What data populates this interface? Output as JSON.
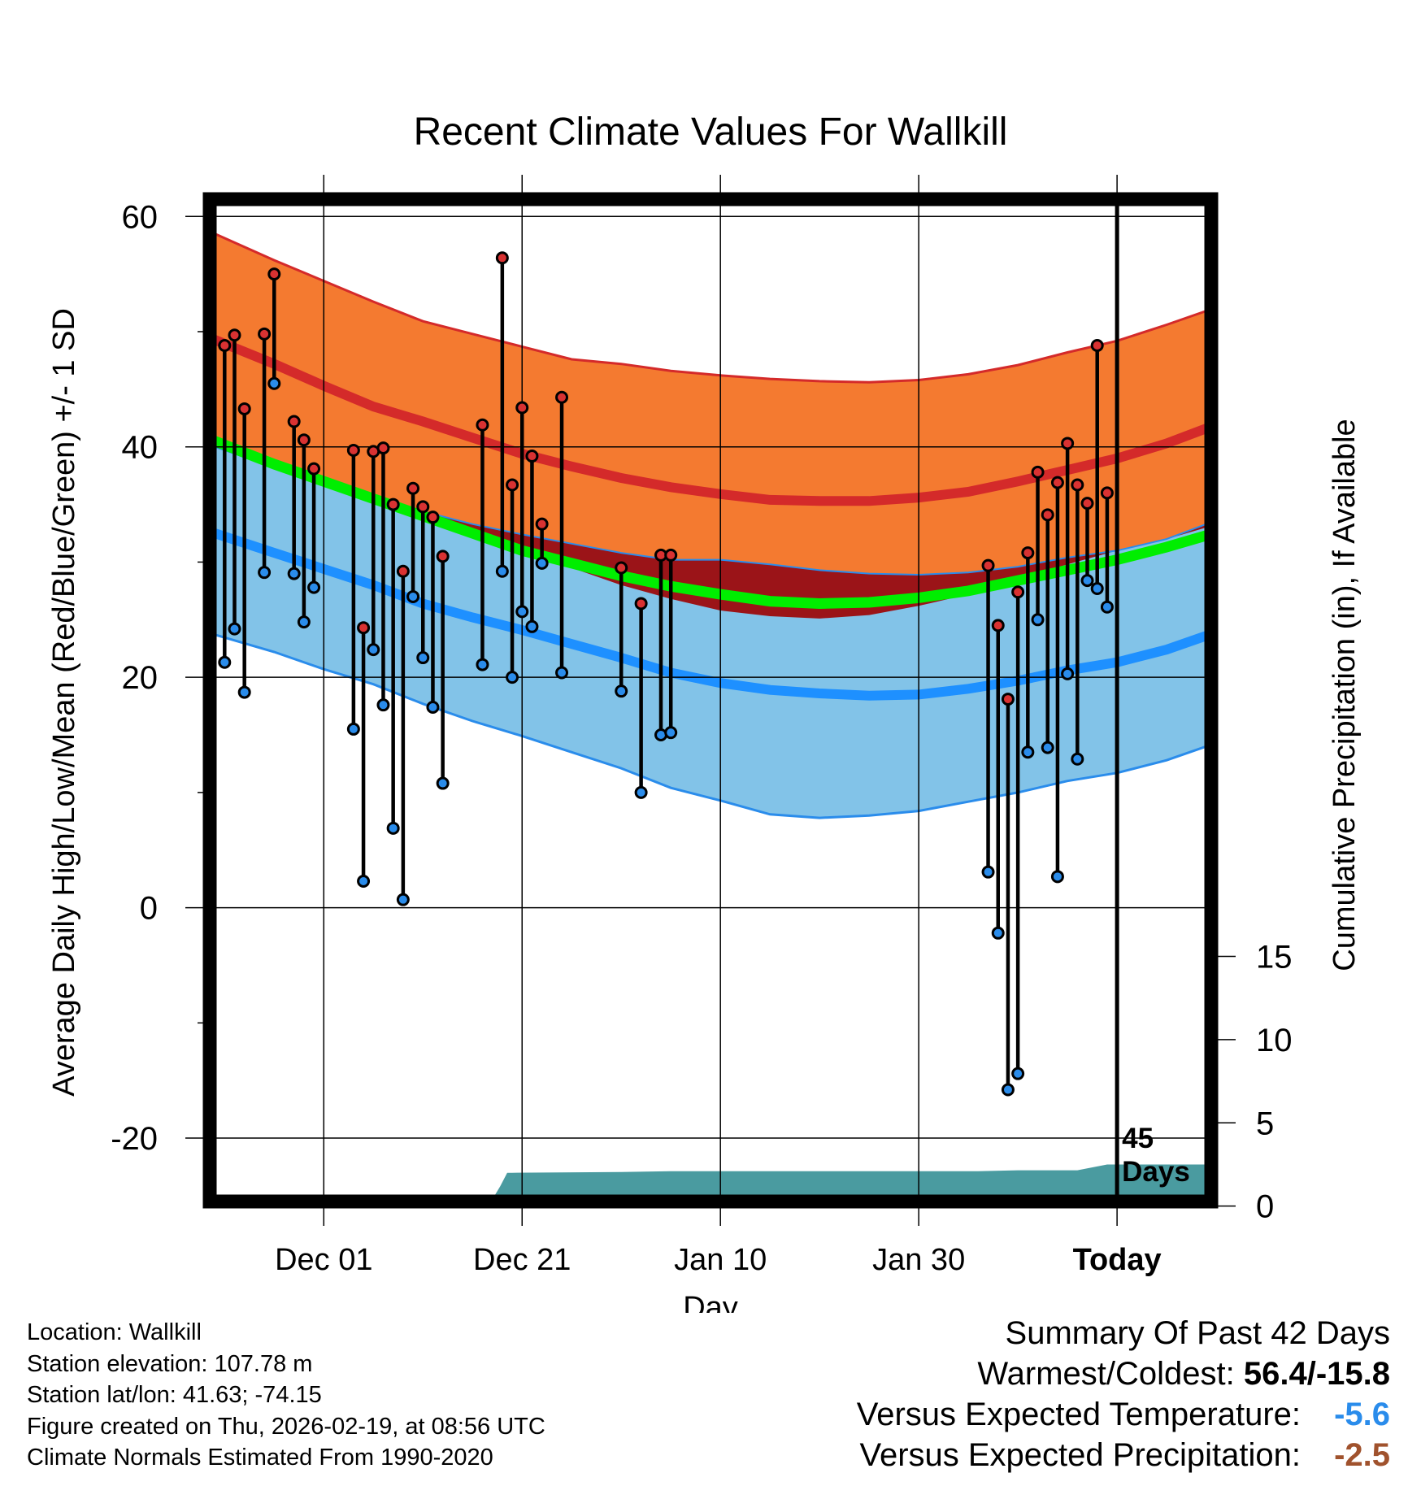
{
  "colors": {
    "band_high": "#F47A30",
    "band_high_edge": "#D42A2A",
    "mean_high": "#D42A2A",
    "band_low": "#82C3E8",
    "band_low_edge": "#2A8CEB",
    "mean_low": "#1E90FF",
    "mean": "#00EE00",
    "overlap": "#9B1418",
    "precip": "#4A9BA0",
    "high_marker": "#D93232",
    "low_marker": "#2A8CEB",
    "temp_anomaly": "#2A8CEB",
    "precip_anomaly": "#A0522D"
  },
  "chart_data": {
    "type": "line",
    "title": "Recent Climate Values For Wallkill",
    "xlabel": "Day",
    "ylabel": "Average Daily High/Low/Mean (Red/Blue/Green) +/- 1 SD",
    "y2label": "Cumulative Precipitation (in), If Available",
    "x_ticks": [
      {
        "day": 0,
        "label": "Dec 01"
      },
      {
        "day": 20,
        "label": "Dec 21"
      },
      {
        "day": 40,
        "label": "Jan 10"
      },
      {
        "day": 60,
        "label": "Jan 30"
      },
      {
        "day": 80,
        "label": "Today"
      }
    ],
    "xlim": [
      -11.5,
      89.5
    ],
    "ylim": [
      -25.5,
      61.5
    ],
    "y_ticks": [
      60,
      40,
      20,
      0,
      -20
    ],
    "y_minor_ticks": [
      50,
      30,
      10,
      -10
    ],
    "y2_ticks": [
      {
        "value": 0,
        "label": "0"
      },
      {
        "value": 5,
        "label": "5"
      },
      {
        "value": 10,
        "label": "10"
      },
      {
        "value": 15,
        "label": "15"
      }
    ],
    "y2_scale": {
      "y_at_zero": -25.9,
      "y_per_inch": 1.445
    },
    "today_day": 80,
    "today_label": [
      "45",
      "Days"
    ],
    "normals": {
      "x": [
        -11,
        -5,
        0,
        5,
        10,
        15,
        20,
        25,
        30,
        35,
        40,
        45,
        50,
        55,
        60,
        65,
        70,
        75,
        80,
        85,
        89
      ],
      "high_plus_sd": [
        58.5,
        56.2,
        54.4,
        52.6,
        50.9,
        49.8,
        48.7,
        47.6,
        47.2,
        46.6,
        46.2,
        45.9,
        45.7,
        45.6,
        45.8,
        46.3,
        47.1,
        48.2,
        49.2,
        50.6,
        51.8
      ],
      "high_mean": [
        49.3,
        47.2,
        45.3,
        43.5,
        42.2,
        40.8,
        39.4,
        38.3,
        37.3,
        36.5,
        35.9,
        35.4,
        35.3,
        35.3,
        35.6,
        36.1,
        37.0,
        38.0,
        39.0,
        40.3,
        41.6
      ],
      "high_minus_sd": [
        40.0,
        38.5,
        37.0,
        35.5,
        34.0,
        32.5,
        31.0,
        29.5,
        28.0,
        26.8,
        25.8,
        25.3,
        25.1,
        25.4,
        26.2,
        27.2,
        28.5,
        29.8,
        31.0,
        32.0,
        33.0
      ],
      "mean": [
        40.5,
        38.5,
        37.0,
        35.5,
        34.0,
        32.5,
        31.0,
        29.9,
        28.8,
        27.9,
        27.2,
        26.6,
        26.4,
        26.5,
        26.9,
        27.5,
        28.4,
        29.3,
        30.2,
        31.3,
        32.3
      ],
      "low_plus_sd": [
        40.0,
        38.2,
        36.8,
        35.5,
        34.4,
        33.3,
        32.4,
        31.6,
        30.8,
        30.2,
        30.2,
        29.8,
        29.3,
        29.0,
        28.9,
        29.1,
        29.6,
        30.4,
        31.0,
        32.0,
        33.3
      ],
      "low_mean": [
        32.5,
        30.8,
        29.4,
        28.0,
        26.4,
        25.2,
        24.1,
        22.9,
        21.7,
        20.4,
        19.5,
        18.9,
        18.6,
        18.4,
        18.5,
        19.0,
        19.7,
        20.6,
        21.3,
        22.4,
        23.6
      ],
      "low_minus_sd": [
        23.7,
        22.2,
        20.7,
        19.4,
        17.7,
        16.2,
        14.9,
        13.5,
        12.1,
        10.4,
        9.3,
        8.1,
        7.8,
        8.0,
        8.4,
        9.2,
        10.0,
        11.0,
        11.7,
        12.8,
        14.0
      ]
    },
    "series": [
      {
        "name": "Daily High/Low",
        "days": [
          -10,
          -9,
          -8,
          -6,
          -5,
          -3,
          -2,
          -1,
          3,
          4,
          5,
          6,
          7,
          8,
          9,
          10,
          11,
          12,
          16,
          18,
          19,
          20,
          21,
          22,
          24,
          30,
          32,
          34,
          35,
          67,
          68,
          69,
          70,
          71,
          72,
          73,
          74,
          75,
          76,
          77,
          78,
          79
        ],
        "highs": [
          48.8,
          49.7,
          43.3,
          49.8,
          55.0,
          42.2,
          40.6,
          38.1,
          39.7,
          24.3,
          39.6,
          39.9,
          35.0,
          29.2,
          36.4,
          34.8,
          33.9,
          30.5,
          41.9,
          56.4,
          36.7,
          43.4,
          39.2,
          33.3,
          44.3,
          29.5,
          26.4,
          30.6,
          30.6,
          29.7,
          24.5,
          18.1,
          27.4,
          30.8,
          37.8,
          34.1,
          36.9,
          40.3,
          36.7,
          35.1,
          48.8,
          36.0
        ],
        "lows": [
          21.3,
          24.2,
          18.7,
          29.1,
          45.5,
          29.0,
          24.8,
          27.8,
          15.5,
          2.3,
          22.4,
          17.6,
          6.9,
          0.7,
          27.0,
          21.7,
          17.4,
          10.8,
          21.1,
          29.2,
          20.0,
          25.7,
          24.4,
          29.9,
          20.4,
          18.8,
          10.0,
          15.0,
          15.2,
          3.1,
          -2.2,
          -15.8,
          -14.4,
          13.5,
          25.0,
          13.9,
          2.7,
          20.3,
          12.9,
          28.4,
          27.7,
          26.1
        ]
      }
    ],
    "precip_cumulative": {
      "x": [
        -11.5,
        -7.5,
        -7.5,
        8,
        8.5,
        13,
        13.5,
        17,
        17.8,
        18.5,
        19.0,
        30,
        35,
        60,
        66,
        70,
        76,
        79,
        89.5
      ],
      "in": [
        0.0,
        0.0,
        0.2,
        0.2,
        0.3,
        0.3,
        0.4,
        0.4,
        1.2,
        2.0,
        2.0,
        2.05,
        2.1,
        2.1,
        2.1,
        2.15,
        2.15,
        2.5,
        2.5
      ]
    }
  },
  "meta": {
    "location": "Location: Wallkill",
    "elevation": "Station elevation: 107.78 m",
    "latlon": "Station lat/lon: 41.63; -74.15",
    "created": "Figure created on Thu, 2026-02-19, at 08:56 UTC",
    "normals": "Climate Normals Estimated From 1990-2020"
  },
  "summary": {
    "title": "Summary Of Past 42 Days",
    "warm_cold_label": "Warmest/Coldest: ",
    "warm_cold_value": "56.4/-15.8",
    "temp_label": "Versus Expected Temperature:",
    "temp_value": "-5.6",
    "precip_label": "Versus Expected Precipitation:",
    "precip_value": "-2.5"
  }
}
